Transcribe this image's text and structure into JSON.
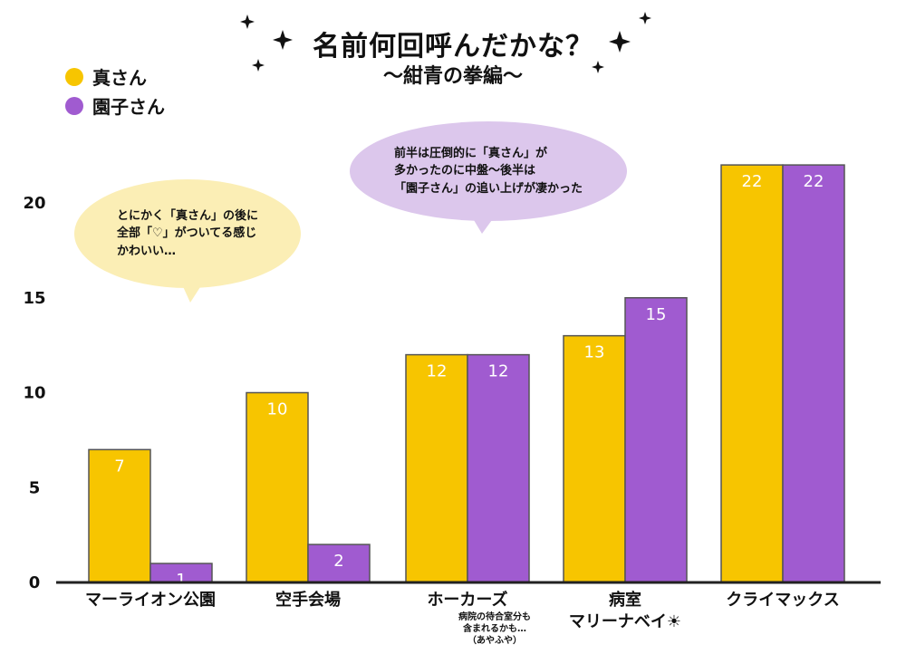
{
  "title": "名前何回呼んだかな？",
  "subtitle": "〜紺青の拳編〜",
  "colors": {
    "makoto": "#f7c500",
    "sonoko": "#a05bd0",
    "axis": "#222222",
    "bubble_yellow": "#fbeeb5",
    "bubble_purple": "#dcc7ec"
  },
  "legend": [
    {
      "label": "真さん",
      "color": "#f7c500"
    },
    {
      "label": "園子さん",
      "color": "#a05bd0"
    }
  ],
  "bubbles": {
    "left": [
      "とにかく「真さん」の後に",
      "全部「♡」がついてる感じ",
      "かわいい…"
    ],
    "right": [
      "前半は圧倒的に「真さん」が",
      "多かったのに中盤〜後半は",
      "「園子さん」の追い上げが凄かった"
    ]
  },
  "note": [
    "病院の待合室分も",
    "含まれるかも…",
    "（あやふや）"
  ],
  "chart_data": {
    "type": "bar",
    "categories": [
      "マーライオン公園",
      "空手会場",
      "ホーカーズ",
      "病室",
      "クライマックス"
    ],
    "category_extra": {
      "病室": "マリーナベイ☀"
    },
    "series": [
      {
        "name": "真さん",
        "values": [
          7,
          10,
          12,
          13,
          22
        ]
      },
      {
        "name": "園子さん",
        "values": [
          1,
          2,
          12,
          15,
          22
        ]
      }
    ],
    "yticks": [
      0,
      5,
      10,
      15,
      20
    ],
    "ylim": [
      0,
      25
    ],
    "grid": false,
    "legend_position": "top-left"
  }
}
